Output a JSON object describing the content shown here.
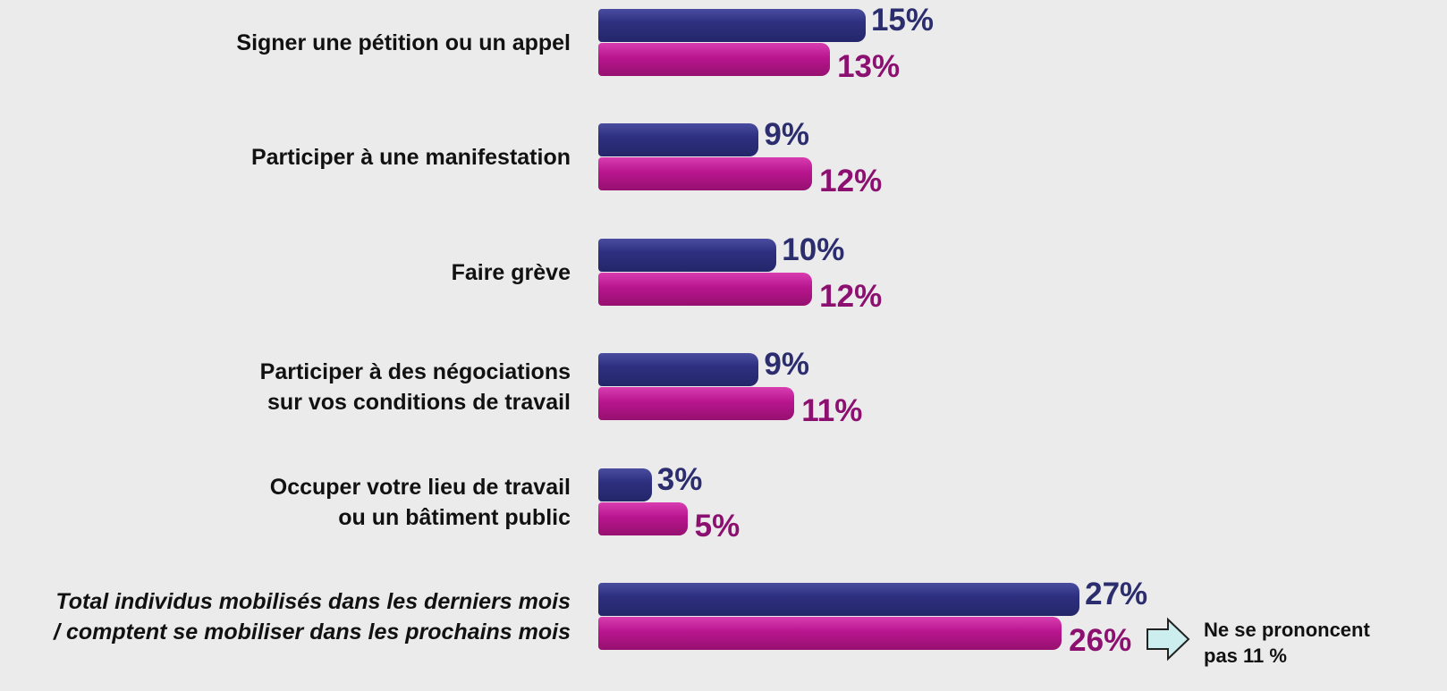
{
  "chart_data": {
    "type": "bar",
    "orientation": "horizontal",
    "categories": [
      "Signer une pétition ou un appel",
      "Participer à une manifestation",
      "Faire grève",
      "Participer à des négociations\nsur vos conditions de travail",
      "Occuper votre lieu de travail\nou un bâtiment public",
      "Total individus mobilisés dans les derniers mois\n/ comptent se mobiliser dans les prochains mois"
    ],
    "series": [
      {
        "color": "#2b2d7a",
        "label_color": "#2b2d6e",
        "values": [
          15,
          9,
          10,
          9,
          3,
          27
        ],
        "value_labels": [
          "15%",
          "9%",
          "10%",
          "9%",
          "3%",
          "27%"
        ]
      },
      {
        "color": "#b5158f",
        "label_color": "#8b1070",
        "values": [
          13,
          12,
          12,
          11,
          5,
          26
        ],
        "value_labels": [
          "13%",
          "12%",
          "12%",
          "11%",
          "5%",
          "26%"
        ]
      }
    ],
    "annotation": "Ne se prononcent\npas 11 %"
  }
}
